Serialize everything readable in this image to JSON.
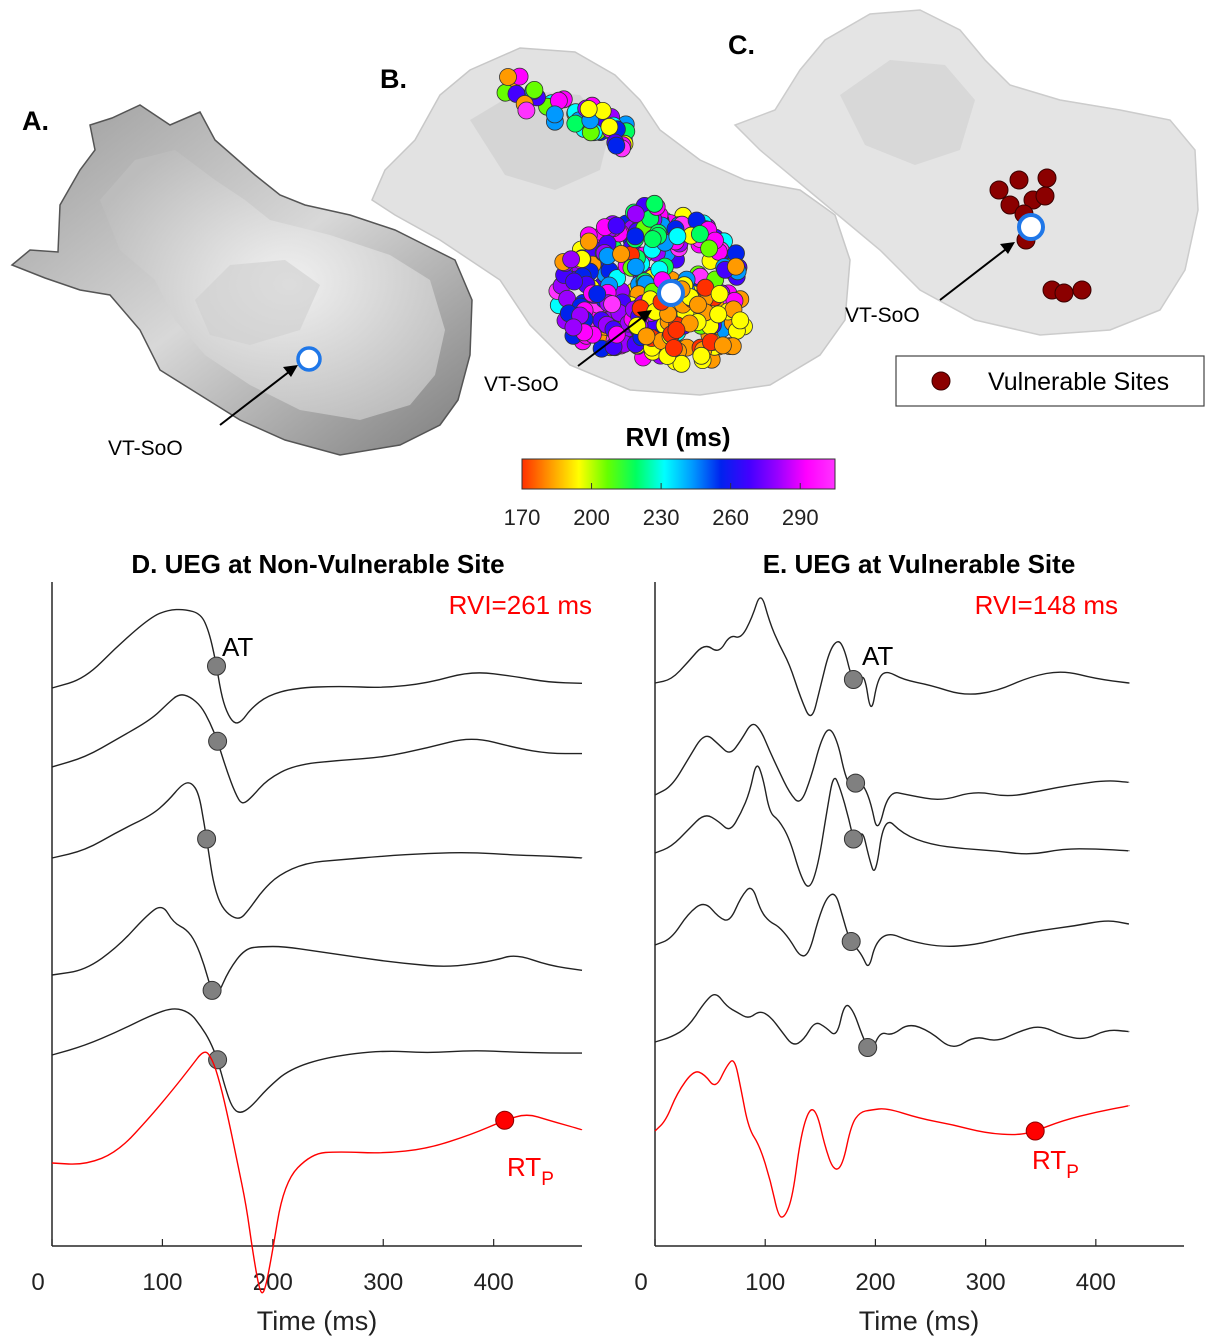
{
  "panels": {
    "a": {
      "letter": "A.",
      "soo_label": "VT-SoO"
    },
    "b": {
      "letter": "B.",
      "soo_label": "VT-SoO"
    },
    "c": {
      "letter": "C.",
      "soo_label": "VT-SoO",
      "legend_label": "Vulnerable Sites"
    }
  },
  "colorbar": {
    "title": "RVI (ms)",
    "ticks": [
      "170",
      "200",
      "230",
      "260",
      "290"
    ],
    "colors": [
      "#ff3000",
      "#ff9a00",
      "#ffff00",
      "#66ff00",
      "#00ff60",
      "#00ffff",
      "#0099ff",
      "#0022ee",
      "#4400ff",
      "#9a00ff",
      "#ff00ff",
      "#ff33ff"
    ]
  },
  "colors": {
    "trace": "#222222",
    "rt_trace": "#ff0000",
    "at_marker": "#808080",
    "vulnerable_site": "#8b0000",
    "soo_ring": "#1f77e8"
  },
  "chart_data": [
    {
      "type": "line",
      "title": "D. UEG at Non-Vulnerable Site",
      "xlabel": "Time (ms)",
      "xlim": [
        0,
        480
      ],
      "xticks": [
        "0",
        "100",
        "200",
        "300",
        "400"
      ],
      "annotation": "RVI=261 ms",
      "at_label": "AT",
      "rt_label": "RT",
      "rt_sub": "P",
      "series": [
        {
          "kind": "trace",
          "offset": 0,
          "x": [
            0,
            30,
            60,
            90,
            105,
            120,
            135,
            142,
            148,
            153,
            158,
            165,
            172,
            180,
            195,
            220,
            260,
            300,
            340,
            380,
            420,
            450,
            480
          ],
          "y": [
            0.0,
            0.1,
            0.45,
            0.75,
            0.82,
            0.83,
            0.78,
            0.6,
            0.3,
            -0.05,
            -0.25,
            -0.38,
            -0.35,
            -0.22,
            -0.08,
            0.0,
            0.02,
            0.0,
            0.05,
            0.18,
            0.12,
            0.06,
            0.05
          ],
          "at_x": 149
        },
        {
          "kind": "trace",
          "offset": 1,
          "x": [
            0,
            30,
            60,
            90,
            105,
            115,
            125,
            135,
            143,
            150,
            158,
            166,
            172,
            180,
            195,
            220,
            260,
            300,
            340,
            380,
            420,
            450,
            480
          ],
          "y": [
            -0.02,
            0.08,
            0.28,
            0.48,
            0.65,
            0.75,
            0.72,
            0.62,
            0.45,
            0.25,
            -0.05,
            -0.3,
            -0.42,
            -0.35,
            -0.15,
            0.0,
            0.05,
            0.08,
            0.18,
            0.3,
            0.18,
            0.12,
            0.12
          ],
          "at_x": 150
        },
        {
          "kind": "trace",
          "offset": 2,
          "x": [
            0,
            30,
            60,
            90,
            105,
            118,
            126,
            133,
            138,
            142,
            146,
            152,
            160,
            170,
            178,
            190,
            205,
            230,
            260,
            300,
            340,
            380,
            420,
            450,
            480
          ],
          "y": [
            0.0,
            0.08,
            0.28,
            0.45,
            0.6,
            0.78,
            0.8,
            0.68,
            0.35,
            0.05,
            -0.25,
            -0.48,
            -0.6,
            -0.65,
            -0.55,
            -0.35,
            -0.18,
            -0.05,
            -0.02,
            0.02,
            0.05,
            0.06,
            0.03,
            0.02,
            0.0
          ],
          "at_x": 140
        },
        {
          "kind": "trace",
          "offset": 3,
          "x": [
            0,
            30,
            60,
            85,
            100,
            110,
            122,
            130,
            138,
            144,
            150,
            160,
            175,
            190,
            210,
            240,
            280,
            320,
            360,
            400,
            420,
            450,
            480
          ],
          "y": [
            0.0,
            0.05,
            0.3,
            0.62,
            0.75,
            0.55,
            0.48,
            0.35,
            0.1,
            -0.15,
            -0.22,
            0.05,
            0.28,
            0.3,
            0.3,
            0.25,
            0.18,
            0.12,
            0.08,
            0.15,
            0.22,
            0.1,
            0.05
          ],
          "at_x": 145
        },
        {
          "kind": "trace",
          "offset": 4,
          "x": [
            0,
            30,
            60,
            90,
            110,
            125,
            135,
            143,
            150,
            157,
            163,
            170,
            180,
            195,
            215,
            250,
            300,
            340,
            380,
            420,
            450,
            480
          ],
          "y": [
            0.0,
            0.1,
            0.25,
            0.42,
            0.5,
            0.45,
            0.3,
            0.15,
            -0.05,
            -0.35,
            -0.55,
            -0.62,
            -0.55,
            -0.35,
            -0.15,
            -0.02,
            0.05,
            0.02,
            0.05,
            0.03,
            0.02,
            0.02
          ],
          "at_x": 150
        },
        {
          "kind": "rt",
          "offset": 5,
          "x": [
            0,
            30,
            60,
            90,
            110,
            125,
            138,
            145,
            152,
            160,
            168,
            176,
            182,
            188,
            192,
            198,
            210,
            235,
            260,
            300,
            340,
            380,
            410,
            430,
            450,
            480
          ],
          "y": [
            0.0,
            -0.02,
            0.12,
            0.5,
            0.78,
            1.0,
            1.2,
            1.1,
            0.85,
            0.45,
            0.0,
            -0.45,
            -0.95,
            -1.35,
            -1.38,
            -1.05,
            -0.2,
            0.1,
            0.12,
            0.1,
            0.15,
            0.3,
            0.45,
            0.52,
            0.45,
            0.35
          ],
          "rt_x": 410
        }
      ]
    },
    {
      "type": "line",
      "title": "E. UEG at Vulnerable Site",
      "xlabel": "Time (ms)",
      "xlim": [
        0,
        480
      ],
      "xticks": [
        "0",
        "100",
        "200",
        "300",
        "400"
      ],
      "annotation": "RVI=148 ms",
      "at_label": "AT",
      "rt_label": "RT",
      "rt_sub": "P",
      "series": [
        {
          "kind": "trace",
          "offset": 0,
          "x": [
            0,
            15,
            30,
            45,
            58,
            68,
            78,
            88,
            96,
            104,
            112,
            122,
            132,
            142,
            150,
            158,
            166,
            172,
            178,
            184,
            190,
            196,
            202,
            210,
            225,
            250,
            280,
            310,
            340,
            370,
            400,
            430
          ],
          "y": [
            0.0,
            0.08,
            0.5,
            0.95,
            0.7,
            1.15,
            1.05,
            1.55,
            2.2,
            1.45,
            0.95,
            0.45,
            -0.35,
            -0.95,
            -0.1,
            0.75,
            1.05,
            0.8,
            0.15,
            -0.05,
            0.25,
            -0.8,
            0.1,
            0.3,
            0.08,
            -0.05,
            -0.3,
            -0.2,
            0.15,
            0.3,
            0.1,
            0.0
          ],
          "at_x": 180
        },
        {
          "kind": "trace",
          "offset": 1,
          "x": [
            0,
            15,
            30,
            45,
            58,
            68,
            78,
            88,
            96,
            104,
            112,
            122,
            132,
            142,
            150,
            158,
            166,
            172,
            178,
            184,
            190,
            196,
            202,
            212,
            230,
            260,
            290,
            320,
            350,
            380,
            410,
            430
          ],
          "y": [
            0.0,
            0.2,
            0.85,
            1.5,
            1.2,
            0.95,
            1.3,
            1.75,
            1.55,
            1.05,
            0.6,
            0.05,
            -0.25,
            0.45,
            1.25,
            1.65,
            1.25,
            0.5,
            0.15,
            0.35,
            0.2,
            -0.2,
            -0.95,
            0.1,
            0.0,
            -0.15,
            0.1,
            -0.05,
            0.1,
            0.25,
            0.35,
            0.3
          ],
          "at_x": 182
        },
        {
          "kind": "trace",
          "offset": 2,
          "x": [
            0,
            15,
            30,
            45,
            58,
            68,
            78,
            86,
            92,
            98,
            104,
            112,
            122,
            132,
            140,
            148,
            156,
            162,
            168,
            176,
            182,
            188,
            194,
            200,
            208,
            225,
            250,
            280,
            310,
            340,
            370,
            400,
            430
          ],
          "y": [
            0.0,
            0.15,
            0.55,
            0.95,
            0.75,
            0.5,
            0.95,
            1.45,
            2.2,
            1.8,
            0.95,
            0.8,
            0.35,
            -0.55,
            -0.9,
            -0.3,
            1.0,
            1.9,
            1.55,
            0.8,
            0.1,
            0.6,
            -0.1,
            -0.6,
            0.9,
            0.45,
            0.2,
            0.1,
            0.05,
            -0.05,
            0.1,
            0.1,
            0.05
          ],
          "at_x": 180
        },
        {
          "kind": "trace",
          "offset": 3,
          "x": [
            0,
            15,
            30,
            45,
            58,
            68,
            78,
            88,
            96,
            104,
            112,
            122,
            132,
            140,
            148,
            156,
            164,
            170,
            176,
            182,
            188,
            194,
            200,
            212,
            230,
            260,
            290,
            320,
            350,
            380,
            410,
            430
          ],
          "y": [
            0.0,
            0.15,
            0.75,
            1.05,
            0.65,
            0.55,
            1.15,
            1.45,
            0.8,
            0.55,
            0.45,
            0.15,
            -0.3,
            -0.2,
            0.6,
            1.15,
            1.25,
            0.7,
            0.15,
            -0.05,
            -0.25,
            -0.6,
            0.05,
            0.3,
            0.1,
            -0.05,
            0.0,
            0.2,
            0.35,
            0.45,
            0.6,
            0.5
          ],
          "at_x": 178
        },
        {
          "kind": "trace",
          "offset": 4,
          "x": [
            0,
            15,
            30,
            45,
            55,
            65,
            75,
            85,
            95,
            105,
            115,
            125,
            135,
            145,
            155,
            165,
            172,
            180,
            188,
            196,
            204,
            215,
            230,
            250,
            270,
            290,
            310,
            330,
            350,
            370,
            390,
            410,
            430
          ],
          "y": [
            0.0,
            0.12,
            0.35,
            0.95,
            1.2,
            0.85,
            0.7,
            0.55,
            0.75,
            0.6,
            0.25,
            -0.1,
            0.05,
            0.5,
            0.35,
            0.1,
            0.95,
            0.75,
            0.15,
            -0.3,
            0.25,
            0.15,
            0.45,
            0.25,
            -0.2,
            0.15,
            0.0,
            0.25,
            0.4,
            0.15,
            0.05,
            0.3,
            0.25
          ],
          "at_x": 193
        },
        {
          "kind": "rt",
          "offset": 5,
          "x": [
            0,
            10,
            20,
            35,
            45,
            55,
            65,
            72,
            78,
            85,
            95,
            105,
            112,
            118,
            125,
            132,
            140,
            147,
            154,
            162,
            170,
            178,
            186,
            196,
            210,
            240,
            270,
            300,
            330,
            345,
            370,
            400,
            430
          ],
          "y": [
            0.0,
            0.25,
            0.9,
            1.45,
            1.35,
            1.0,
            1.55,
            1.75,
            1.0,
            0.05,
            -0.35,
            -1.2,
            -2.05,
            -2.05,
            -1.55,
            -0.15,
            0.55,
            0.45,
            -0.35,
            -0.95,
            -0.85,
            0.15,
            0.45,
            0.5,
            0.55,
            0.3,
            0.15,
            -0.05,
            -0.1,
            0.0,
            0.25,
            0.45,
            0.6
          ],
          "rt_x": 345
        }
      ]
    }
  ]
}
